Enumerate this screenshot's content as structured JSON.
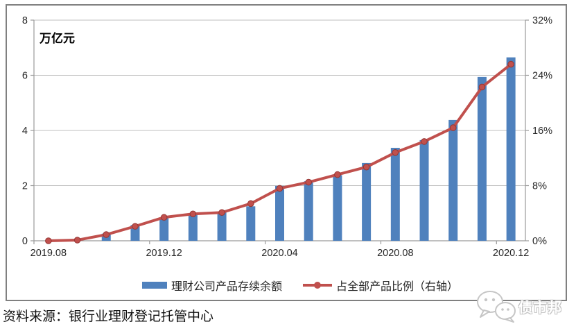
{
  "chart_data": {
    "type": "bar+line",
    "unit_label": "万亿元",
    "categories": [
      "2019.08",
      "2019.09",
      "2019.10",
      "2019.11",
      "2019.12",
      "2020.01",
      "2020.02",
      "2020.03",
      "2020.04",
      "2020.05",
      "2020.06",
      "2020.07",
      "2020.08",
      "2020.09",
      "2020.10",
      "2020.11",
      "2020.12"
    ],
    "x_tick_indices": [
      0,
      4,
      8,
      12,
      16
    ],
    "x_tick_labels": [
      "2019.08",
      "2019.12",
      "2020.04",
      "2020.08",
      "2020.12"
    ],
    "left_axis": {
      "min": 0,
      "max": 8,
      "step": 2,
      "labels": [
        "0",
        "2",
        "4",
        "6",
        "8"
      ]
    },
    "right_axis": {
      "min": 0,
      "max": 32,
      "step": 8,
      "labels": [
        "0%",
        "8%",
        "16%",
        "24%",
        "32%"
      ]
    },
    "series": [
      {
        "name": "理财公司产品存续余额",
        "type": "bar",
        "axis": "left",
        "color": "#4F81BD",
        "values": [
          0,
          0.02,
          0.26,
          0.57,
          0.84,
          0.97,
          1.03,
          1.25,
          1.99,
          2.16,
          2.38,
          2.82,
          3.37,
          3.65,
          4.38,
          5.94,
          6.65
        ]
      },
      {
        "name": "占全部产品比例（右轴）",
        "type": "line",
        "axis": "right",
        "color": "#C0504D",
        "marker_edge": "#943634",
        "values": [
          0,
          0.1,
          0.9,
          2.1,
          3.4,
          3.9,
          4.1,
          5.4,
          7.6,
          8.5,
          9.6,
          10.7,
          12.8,
          14.4,
          16.4,
          22.3,
          25.6
        ]
      }
    ],
    "legend_position": "bottom",
    "grid": true
  },
  "source_note": "资料来源：银行业理财登记托管中心",
  "watermark": {
    "text": "债市邦",
    "icon": "wechat-icon"
  },
  "colors": {
    "bar": "#4F81BD",
    "line": "#C0504D",
    "gridline": "#BFBFBF",
    "axis": "#9a9a9a",
    "frame": "#808080"
  }
}
